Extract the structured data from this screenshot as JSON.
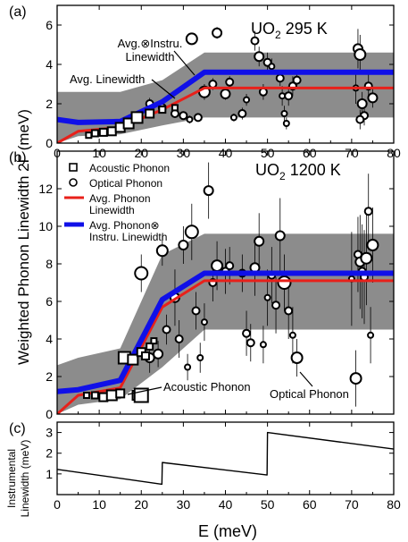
{
  "figure": {
    "ylabel_main": "Weighted Phonon Linewidth 2Γ (meV)",
    "ylabel_c_line1": "Instrumental",
    "ylabel_c_line2": "Linewidth (meV)",
    "xlabel": "E (meV)"
  },
  "chart_data": [
    {
      "panel": "a",
      "panel_label": "(a)",
      "type": "scatter",
      "title_main": "UO",
      "title_sub": "2",
      "title_rest": "295 K",
      "xlim": [
        0,
        80
      ],
      "ylim": [
        0,
        7
      ],
      "xticks": [
        "0",
        "10",
        "20",
        "30",
        "40",
        "50",
        "60",
        "70",
        "80"
      ],
      "yticks": [
        "0",
        "2",
        "4",
        "6"
      ],
      "ytick_values": [
        0,
        2,
        4,
        6
      ],
      "annotations": [
        {
          "text_lines": [
            "Avg.⊗Instru.",
            "Linewidth"
          ]
        },
        {
          "text_lines": [
            "Avg. Linewidth"
          ]
        }
      ],
      "band": {
        "x": [
          0,
          5,
          15,
          25,
          35,
          80
        ],
        "lower": [
          0,
          0.35,
          0.45,
          0.9,
          1.3,
          1.3
        ],
        "upper": [
          2.6,
          2.6,
          2.6,
          3.2,
          4.6,
          4.6
        ]
      },
      "series": [
        {
          "name": "Avg. Linewidth",
          "color": "#e8201a",
          "x": [
            0,
            5,
            15,
            25,
            35,
            80
          ],
          "y": [
            0,
            0.6,
            0.8,
            1.7,
            2.8,
            2.8
          ]
        },
        {
          "name": "Avg.⊗Instru. Linewidth",
          "color": "#1010e8",
          "x": [
            0,
            5,
            15,
            25,
            35,
            80
          ],
          "y": [
            1.2,
            1.05,
            1.1,
            2.1,
            3.6,
            3.6
          ]
        }
      ],
      "acoustic": [
        {
          "x": 7.5,
          "y": 0.4,
          "s": 6
        },
        {
          "x": 9,
          "y": 0.5,
          "s": 7
        },
        {
          "x": 11,
          "y": 0.55,
          "s": 8
        },
        {
          "x": 13,
          "y": 0.6,
          "s": 9
        },
        {
          "x": 15,
          "y": 0.8,
          "s": 10
        },
        {
          "x": 17,
          "y": 1.0,
          "s": 11
        },
        {
          "x": 19,
          "y": 1.3,
          "s": 12
        },
        {
          "x": 22,
          "y": 1.5,
          "s": 9
        },
        {
          "x": 25,
          "y": 1.7,
          "s": 7
        },
        {
          "x": 28,
          "y": 1.8,
          "s": 6
        }
      ],
      "optical": [
        {
          "x": 22,
          "y": 2.0,
          "r": 4,
          "e": 0.3
        },
        {
          "x": 25,
          "y": 1.8,
          "r": 4,
          "e": 0.3
        },
        {
          "x": 28,
          "y": 1.5,
          "r": 4,
          "e": 0.2
        },
        {
          "x": 30,
          "y": 1.4,
          "r": 4,
          "e": 0.2
        },
        {
          "x": 31.5,
          "y": 1.2,
          "r": 3,
          "e": 0.2
        },
        {
          "x": 32,
          "y": 5.3,
          "r": 6,
          "e": 0.3
        },
        {
          "x": 33.5,
          "y": 1.3,
          "r": 4,
          "e": 0.2
        },
        {
          "x": 35,
          "y": 2.6,
          "r": 6,
          "e": 0.4
        },
        {
          "x": 37,
          "y": 3.0,
          "r": 4,
          "e": 0.3
        },
        {
          "x": 38,
          "y": 5.6,
          "r": 5,
          "e": 0.3
        },
        {
          "x": 40,
          "y": 2.5,
          "r": 5,
          "e": 0.3
        },
        {
          "x": 41,
          "y": 3.1,
          "r": 4,
          "e": 0.3
        },
        {
          "x": 42,
          "y": 1.3,
          "r": 3,
          "e": 0.2
        },
        {
          "x": 44,
          "y": 1.5,
          "r": 4,
          "e": 0.3
        },
        {
          "x": 45,
          "y": 2.2,
          "r": 3,
          "e": 0.3
        },
        {
          "x": 47,
          "y": 5.2,
          "r": 4,
          "e": 0.5
        },
        {
          "x": 48,
          "y": 4.4,
          "r": 5,
          "e": 0.5
        },
        {
          "x": 49,
          "y": 2.6,
          "r": 4,
          "e": 0.4
        },
        {
          "x": 50,
          "y": 4.1,
          "r": 4,
          "e": 0.5
        },
        {
          "x": 51,
          "y": 3.9,
          "r": 3,
          "e": 0.4
        },
        {
          "x": 53,
          "y": 3.3,
          "r": 4,
          "e": 0.4
        },
        {
          "x": 53.5,
          "y": 2.4,
          "r": 3,
          "e": 0.5
        },
        {
          "x": 54,
          "y": 1.5,
          "r": 3,
          "e": 0.4
        },
        {
          "x": 54.5,
          "y": 1.0,
          "r": 3,
          "e": 0.3
        },
        {
          "x": 55,
          "y": 2.4,
          "r": 4,
          "e": 0.5
        },
        {
          "x": 56,
          "y": 2.9,
          "r": 4,
          "e": 0.5
        },
        {
          "x": 57,
          "y": 3.2,
          "r": 4,
          "e": 0.4
        },
        {
          "x": 71,
          "y": 2.8,
          "r": 3,
          "e": 0.8
        },
        {
          "x": 71.5,
          "y": 4.8,
          "r": 5,
          "e": 1.0
        },
        {
          "x": 72,
          "y": 4.5,
          "r": 6,
          "e": 1.0
        },
        {
          "x": 72.5,
          "y": 2.0,
          "r": 5,
          "e": 0.6
        },
        {
          "x": 73,
          "y": 1.4,
          "r": 4,
          "e": 0.5
        },
        {
          "x": 74,
          "y": 2.9,
          "r": 4,
          "e": 0.6
        },
        {
          "x": 75,
          "y": 2.3,
          "r": 5,
          "e": 0.5
        },
        {
          "x": 72,
          "y": 1.2,
          "r": 4,
          "e": 0.5
        }
      ]
    },
    {
      "panel": "b",
      "panel_label": "(b)",
      "type": "scatter",
      "title_main": "UO",
      "title_sub": "2",
      "title_rest": "1200 K",
      "xlim": [
        0,
        80
      ],
      "ylim": [
        0,
        14
      ],
      "xticks": [
        "",
        "",
        "",
        "",
        "",
        "",
        "",
        "",
        ""
      ],
      "yticks": [
        "0",
        "2",
        "4",
        "6",
        "8",
        "10",
        "12"
      ],
      "ytick_values": [
        0,
        2,
        4,
        6,
        8,
        10,
        12
      ],
      "legend": [
        {
          "label_lines": [
            "Acoustic Phonon"
          ],
          "marker": "square"
        },
        {
          "label_lines": [
            "Optical Phonon"
          ],
          "marker": "circle"
        },
        {
          "label_lines": [
            "Avg. Phonon",
            "Linewidth"
          ],
          "marker": "red-line"
        },
        {
          "label_lines": [
            "Avg. Phonon⊗",
            "Instru. Linewidth"
          ],
          "marker": "blue-line"
        }
      ],
      "annotations": [
        {
          "text": "Acoustic Phonon"
        },
        {
          "text": "Optical Phonon"
        }
      ],
      "band": {
        "x": [
          0,
          5,
          15,
          25,
          35,
          80
        ],
        "lower": [
          0,
          0.5,
          0.8,
          2.5,
          4.5,
          4.5
        ],
        "upper": [
          2.6,
          3.0,
          3.5,
          8.5,
          9.6,
          9.6
        ]
      },
      "series": [
        {
          "name": "Avg. Phonon Linewidth",
          "color": "#e8201a",
          "x": [
            0,
            5,
            15,
            25,
            35,
            80
          ],
          "y": [
            0,
            1.0,
            1.4,
            5.7,
            7.1,
            7.1
          ]
        },
        {
          "name": "Avg. Phonon⊗ Instru. Linewidth",
          "color": "#1010e8",
          "x": [
            0,
            5,
            15,
            25,
            35,
            80
          ],
          "y": [
            1.2,
            1.3,
            1.8,
            6.1,
            7.5,
            7.5
          ]
        }
      ],
      "acoustic": [
        {
          "x": 7,
          "y": 1.0,
          "s": 6
        },
        {
          "x": 9,
          "y": 1.0,
          "s": 7
        },
        {
          "x": 11,
          "y": 0.9,
          "s": 9
        },
        {
          "x": 13,
          "y": 1.0,
          "s": 11
        },
        {
          "x": 15,
          "y": 1.1,
          "s": 9
        },
        {
          "x": 16,
          "y": 3.0,
          "s": 13
        },
        {
          "x": 18,
          "y": 2.9,
          "s": 11
        },
        {
          "x": 19,
          "y": 1.0,
          "s": 10
        },
        {
          "x": 20,
          "y": 3.3,
          "s": 9
        },
        {
          "x": 21,
          "y": 3.1,
          "s": 8
        },
        {
          "x": 22,
          "y": 3.6,
          "s": 7
        },
        {
          "x": 23,
          "y": 3.9,
          "s": 6
        },
        {
          "x": 20,
          "y": 1.0,
          "s": 15
        }
      ],
      "optical": [
        {
          "x": 20,
          "y": 7.5,
          "r": 7,
          "e": 1.0
        },
        {
          "x": 22,
          "y": 3.0,
          "r": 5,
          "e": 0.8
        },
        {
          "x": 24,
          "y": 3.2,
          "r": 5,
          "e": 0.7
        },
        {
          "x": 25,
          "y": 8.7,
          "r": 6,
          "e": 0.8
        },
        {
          "x": 26,
          "y": 4.5,
          "r": 4,
          "e": 0.8
        },
        {
          "x": 28,
          "y": 6.2,
          "r": 5,
          "e": 1.5
        },
        {
          "x": 29,
          "y": 4.0,
          "r": 4,
          "e": 1.0
        },
        {
          "x": 30,
          "y": 9.0,
          "r": 5,
          "e": 1.0
        },
        {
          "x": 31,
          "y": 2.5,
          "r": 3,
          "e": 0.7
        },
        {
          "x": 32,
          "y": 9.7,
          "r": 7,
          "e": 1.5
        },
        {
          "x": 33,
          "y": 5.5,
          "r": 4,
          "e": 1.0
        },
        {
          "x": 34,
          "y": 3.0,
          "r": 3,
          "e": 0.8
        },
        {
          "x": 35,
          "y": 4.9,
          "r": 3,
          "e": 1.0
        },
        {
          "x": 36,
          "y": 11.9,
          "r": 5,
          "e": 1.5
        },
        {
          "x": 37,
          "y": 7.0,
          "r": 4,
          "e": 1.0
        },
        {
          "x": 38,
          "y": 7.9,
          "r": 6,
          "e": 1.3
        },
        {
          "x": 40,
          "y": 7.6,
          "r": 4,
          "e": 1.2
        },
        {
          "x": 41,
          "y": 7.9,
          "r": 4,
          "e": 1.0
        },
        {
          "x": 44,
          "y": 7.5,
          "r": 4,
          "e": 1.0
        },
        {
          "x": 45,
          "y": 4.3,
          "r": 4,
          "e": 1.2
        },
        {
          "x": 46,
          "y": 3.8,
          "r": 4,
          "e": 1.0
        },
        {
          "x": 47,
          "y": 7.8,
          "r": 5,
          "e": 1.5
        },
        {
          "x": 48,
          "y": 9.2,
          "r": 5,
          "e": 1.5
        },
        {
          "x": 49,
          "y": 3.7,
          "r": 3,
          "e": 1.0
        },
        {
          "x": 50,
          "y": 6.2,
          "r": 3,
          "e": 1.5
        },
        {
          "x": 51,
          "y": 7.4,
          "r": 4,
          "e": 1.5
        },
        {
          "x": 52,
          "y": 5.8,
          "r": 4,
          "e": 1.5
        },
        {
          "x": 53,
          "y": 9.5,
          "r": 5,
          "e": 2.0
        },
        {
          "x": 54,
          "y": 7.0,
          "r": 7,
          "e": 1.5
        },
        {
          "x": 55,
          "y": 5.5,
          "r": 4,
          "e": 1.5
        },
        {
          "x": 56,
          "y": 4.2,
          "r": 3,
          "e": 1.5
        },
        {
          "x": 57,
          "y": 3.0,
          "r": 6,
          "e": 1.0
        },
        {
          "x": 71,
          "y": 1.9,
          "r": 6,
          "e": 1.5
        },
        {
          "x": 71.5,
          "y": 8.5,
          "r": 4,
          "e": 2.0
        },
        {
          "x": 72,
          "y": 8.1,
          "r": 5,
          "e": 2.5
        },
        {
          "x": 73,
          "y": 7.3,
          "r": 4,
          "e": 2.5
        },
        {
          "x": 73.5,
          "y": 8.3,
          "r": 6,
          "e": 2.5
        },
        {
          "x": 74,
          "y": 10.8,
          "r": 4,
          "e": 2.0
        },
        {
          "x": 75,
          "y": 9.0,
          "r": 6,
          "e": 2.0
        },
        {
          "x": 74.5,
          "y": 4.2,
          "r": 3,
          "e": 1.5
        },
        {
          "x": 70,
          "y": 7.2,
          "r": 3,
          "e": 2.5
        },
        {
          "x": 72.5,
          "y": 7.6,
          "r": 4,
          "e": 2.5
        }
      ]
    },
    {
      "panel": "c",
      "panel_label": "(c)",
      "type": "line",
      "xlim": [
        0,
        80
      ],
      "ylim": [
        0,
        3.5
      ],
      "xticks": [
        "0",
        "10",
        "20",
        "30",
        "40",
        "50",
        "60",
        "70",
        "80"
      ],
      "yticks": [
        "1",
        "2",
        "3"
      ],
      "ytick_values": [
        1,
        2,
        3
      ],
      "series": [
        {
          "name": "",
          "color": "#000000",
          "x": [
            0,
            24.9,
            25,
            49.9,
            50,
            80
          ],
          "y": [
            1.22,
            0.5,
            1.55,
            0.95,
            3.0,
            2.2
          ]
        }
      ]
    }
  ]
}
